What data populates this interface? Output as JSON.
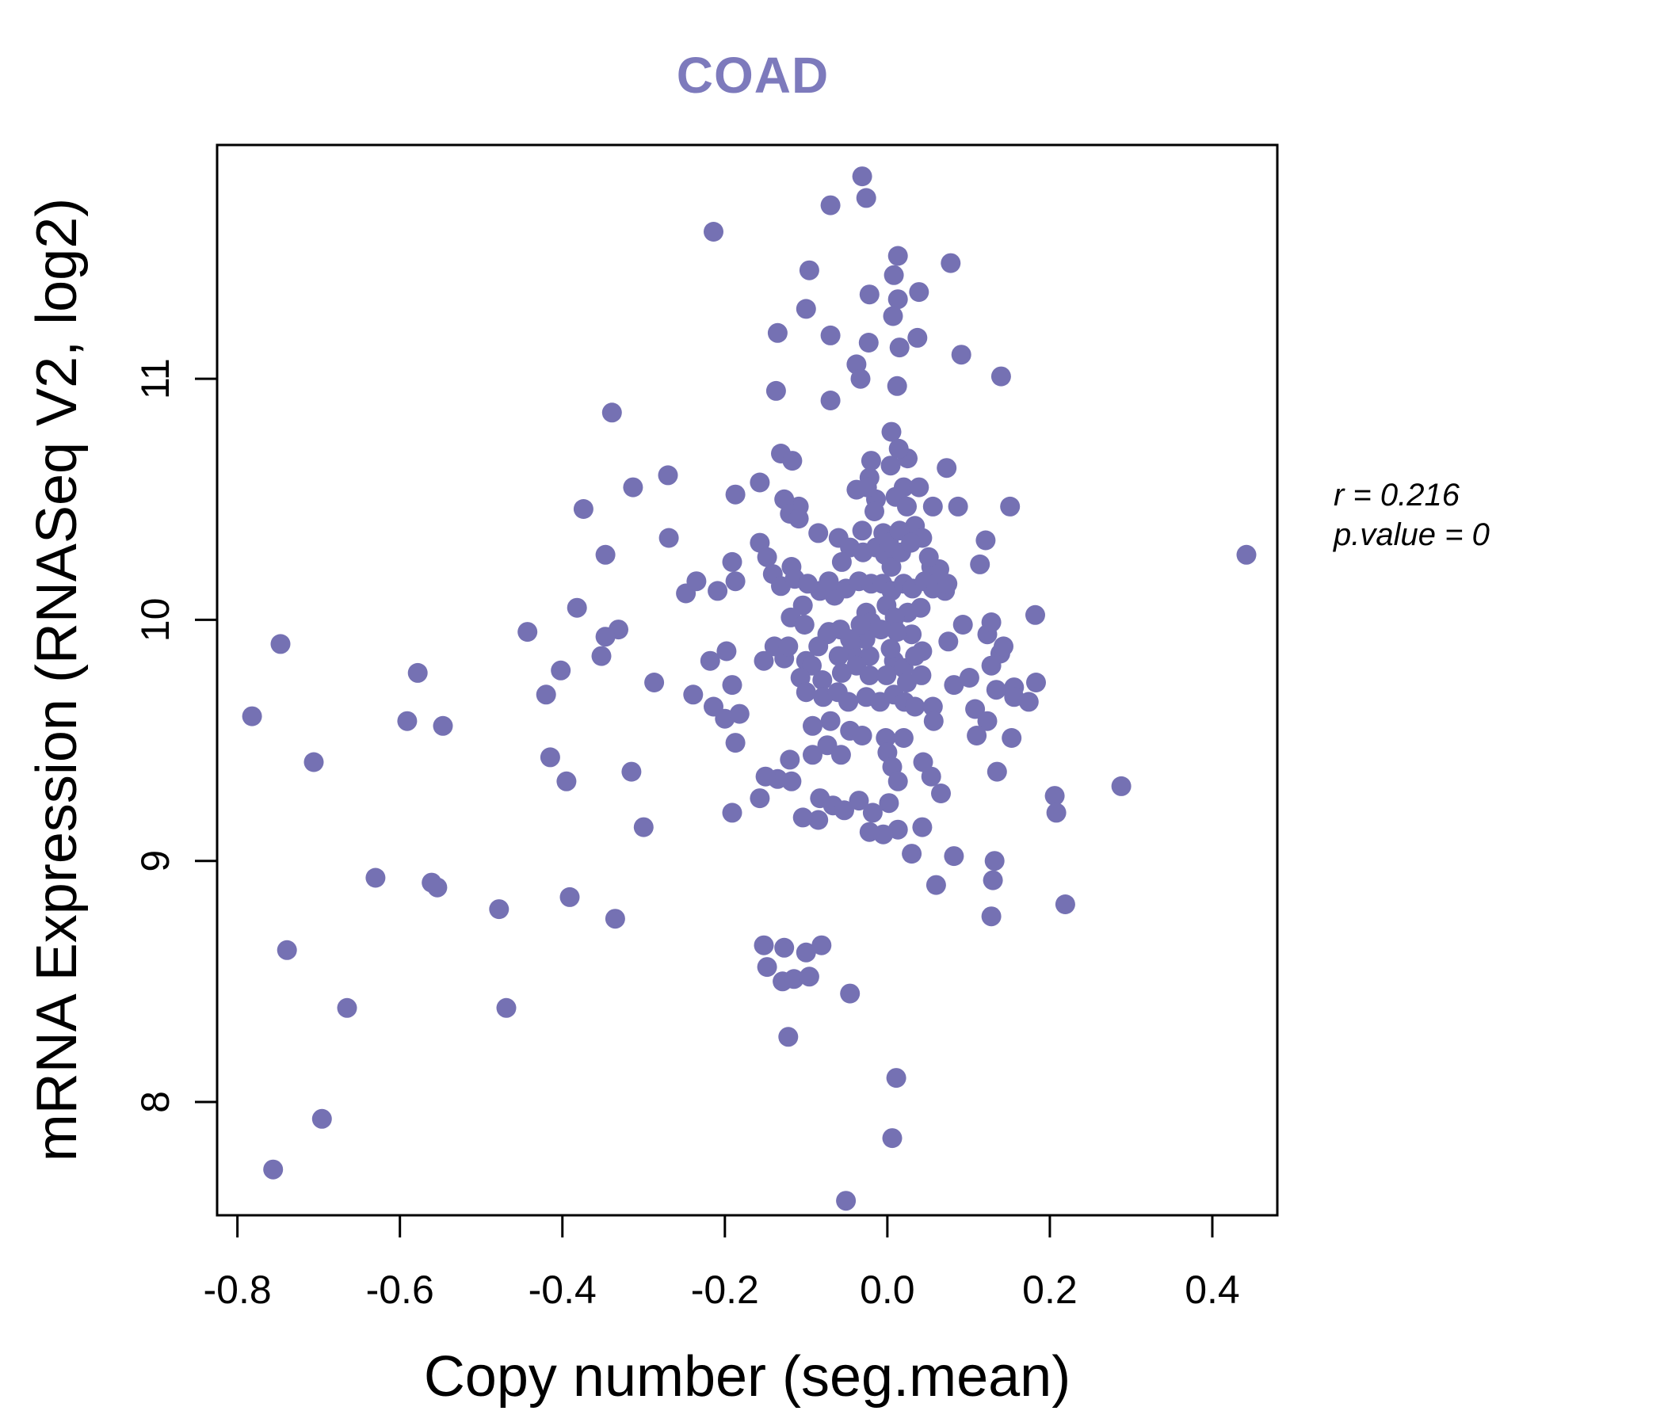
{
  "title": "COAD",
  "title_color": "#7d7abc",
  "annotation": {
    "r_text": "r = 0.216",
    "p_value_text": "p.value = 0"
  },
  "chart_data": {
    "type": "scatter",
    "title": "COAD",
    "xlabel": "Copy number (seg.mean)",
    "ylabel": "mRNA Expression (RNASeq V2, log2)",
    "xlim": [
      -0.825,
      0.48
    ],
    "ylim": [
      7.53,
      11.97
    ],
    "x_ticks": [
      -0.8,
      -0.6,
      -0.4,
      -0.2,
      0.0,
      0.2,
      0.4
    ],
    "x_tick_labels": [
      "-0.8",
      "-0.6",
      "-0.4",
      "-0.2",
      "0.0",
      "0.2",
      "0.4"
    ],
    "y_ticks": [
      8,
      9,
      10,
      11
    ],
    "y_tick_labels": [
      "8",
      "9",
      "10",
      "11"
    ],
    "grid": false,
    "legend_position": "none",
    "point_color": "#7571b3",
    "axis_color": "#000000",
    "correlation_r": 0.216,
    "p_value": 0,
    "points": [
      [
        -0.747,
        9.9
      ],
      [
        -0.578,
        9.78
      ],
      [
        -0.443,
        9.95
      ],
      [
        -0.402,
        9.79
      ],
      [
        -0.782,
        9.6
      ],
      [
        -0.591,
        9.58
      ],
      [
        -0.547,
        9.56
      ],
      [
        -0.42,
        9.69
      ],
      [
        -0.706,
        9.41
      ],
      [
        -0.415,
        9.43
      ],
      [
        -0.395,
        9.33
      ],
      [
        -0.63,
        8.93
      ],
      [
        -0.561,
        8.91
      ],
      [
        -0.554,
        8.89
      ],
      [
        -0.478,
        8.8
      ],
      [
        -0.739,
        8.63
      ],
      [
        -0.665,
        8.39
      ],
      [
        -0.469,
        8.39
      ],
      [
        -0.696,
        7.93
      ],
      [
        -0.756,
        7.72
      ],
      [
        -0.031,
        11.84
      ],
      [
        -0.026,
        11.75
      ],
      [
        -0.07,
        11.72
      ],
      [
        -0.214,
        11.61
      ],
      [
        0.013,
        11.51
      ],
      [
        -0.096,
        11.45
      ],
      [
        0.008,
        11.43
      ],
      [
        -0.022,
        11.35
      ],
      [
        0.013,
        11.33
      ],
      [
        0.039,
        11.36
      ],
      [
        -0.1,
        11.29
      ],
      [
        0.007,
        11.26
      ],
      [
        -0.023,
        11.15
      ],
      [
        0.015,
        11.13
      ],
      [
        0.037,
        11.17
      ],
      [
        -0.135,
        11.19
      ],
      [
        -0.07,
        11.18
      ],
      [
        -0.038,
        11.06
      ],
      [
        -0.033,
        11.0
      ],
      [
        0.012,
        10.97
      ],
      [
        -0.137,
        10.95
      ],
      [
        -0.07,
        10.91
      ],
      [
        -0.27,
        10.6
      ],
      [
        -0.157,
        10.57
      ],
      [
        -0.339,
        10.86
      ],
      [
        -0.313,
        10.55
      ],
      [
        -0.374,
        10.46
      ],
      [
        -0.187,
        10.52
      ],
      [
        -0.109,
        10.47
      ],
      [
        -0.022,
        10.59
      ],
      [
        -0.014,
        10.5
      ],
      [
        0.004,
        10.64
      ],
      [
        0.025,
        10.67
      ],
      [
        0.02,
        10.55
      ],
      [
        0.039,
        10.55
      ],
      [
        -0.031,
        10.37
      ],
      [
        -0.005,
        10.36
      ],
      [
        0.034,
        10.39
      ],
      [
        -0.157,
        10.32
      ],
      [
        -0.131,
        10.69
      ],
      [
        -0.269,
        10.34
      ],
      [
        -0.347,
        10.27
      ],
      [
        -0.382,
        10.05
      ],
      [
        -0.331,
        9.96
      ],
      [
        -0.347,
        9.93
      ],
      [
        -0.248,
        10.11
      ],
      [
        -0.235,
        10.16
      ],
      [
        -0.191,
        10.24
      ],
      [
        -0.187,
        10.16
      ],
      [
        -0.209,
        10.12
      ],
      [
        -0.148,
        10.26
      ],
      [
        -0.141,
        10.19
      ],
      [
        -0.118,
        10.22
      ],
      [
        -0.131,
        10.14
      ],
      [
        -0.104,
        10.06
      ],
      [
        -0.083,
        10.12
      ],
      [
        -0.065,
        10.1
      ],
      [
        -0.051,
        10.13
      ],
      [
        -0.026,
        10.03
      ],
      [
        0.008,
        9.97
      ],
      [
        0.025,
        10.03
      ],
      [
        0.041,
        10.05
      ],
      [
        0.03,
        9.94
      ],
      [
        -0.074,
        9.94
      ],
      [
        -0.044,
        9.87
      ],
      [
        -0.022,
        9.85
      ],
      [
        0.008,
        9.83
      ],
      [
        -0.139,
        9.89
      ],
      [
        -0.127,
        9.84
      ],
      [
        -0.1,
        9.83
      ],
      [
        -0.152,
        9.83
      ],
      [
        -0.198,
        9.87
      ],
      [
        -0.218,
        9.83
      ],
      [
        -0.352,
        9.85
      ],
      [
        -0.287,
        9.74
      ],
      [
        -0.191,
        9.73
      ],
      [
        0.078,
        11.48
      ],
      [
        0.091,
        11.1
      ],
      [
        0.14,
        11.01
      ],
      [
        0.073,
        10.63
      ],
      [
        0.056,
        10.47
      ],
      [
        0.087,
        10.47
      ],
      [
        0.151,
        10.47
      ],
      [
        0.043,
        10.34
      ],
      [
        0.121,
        10.33
      ],
      [
        0.114,
        10.23
      ],
      [
        0.054,
        10.22
      ],
      [
        0.064,
        10.21
      ],
      [
        0.056,
        10.13
      ],
      [
        0.071,
        10.12
      ],
      [
        0.442,
        10.27
      ],
      [
        0.093,
        9.98
      ],
      [
        0.123,
        9.94
      ],
      [
        0.075,
        9.91
      ],
      [
        0.139,
        9.86
      ],
      [
        0.128,
        9.81
      ],
      [
        0.043,
        9.87
      ],
      [
        0.082,
        9.73
      ],
      [
        0.101,
        9.76
      ],
      [
        0.156,
        9.72
      ],
      [
        0.005,
        10.78
      ],
      [
        0.014,
        10.71
      ],
      [
        -0.02,
        10.66
      ],
      [
        -0.117,
        10.66
      ],
      [
        -0.038,
        10.54
      ],
      [
        -0.025,
        10.55
      ],
      [
        -0.016,
        10.45
      ],
      [
        0.01,
        10.51
      ],
      [
        0.024,
        10.47
      ],
      [
        -0.127,
        10.5
      ],
      [
        -0.12,
        10.44
      ],
      [
        -0.109,
        10.42
      ],
      [
        -0.085,
        10.36
      ],
      [
        -0.06,
        10.34
      ],
      [
        -0.046,
        10.3
      ],
      [
        -0.056,
        10.24
      ],
      [
        -0.03,
        10.28
      ],
      [
        -0.014,
        10.3
      ],
      [
        -0.003,
        10.27
      ],
      [
        0.005,
        10.22
      ],
      [
        0.017,
        10.28
      ],
      [
        0.002,
        10.32
      ],
      [
        0.015,
        10.37
      ],
      [
        0.029,
        10.32
      ],
      [
        0.051,
        10.26
      ],
      [
        -0.114,
        10.17
      ],
      [
        -0.098,
        10.15
      ],
      [
        -0.072,
        10.16
      ],
      [
        -0.035,
        10.16
      ],
      [
        -0.02,
        10.15
      ],
      [
        -0.006,
        10.15
      ],
      [
        0.005,
        10.12
      ],
      [
        0.02,
        10.15
      ],
      [
        0.031,
        10.13
      ],
      [
        0.046,
        10.16
      ],
      [
        0.06,
        10.15
      ],
      [
        0.074,
        10.15
      ],
      [
        -0.001,
        10.06
      ],
      [
        0.009,
        10.01
      ],
      [
        0.012,
        9.95
      ],
      [
        0.004,
        9.88
      ],
      [
        -0.008,
        9.96
      ],
      [
        -0.02,
        9.99
      ],
      [
        -0.027,
        9.92
      ],
      [
        -0.033,
        9.98
      ],
      [
        -0.119,
        10.01
      ],
      [
        -0.102,
        9.98
      ],
      [
        -0.122,
        9.89
      ],
      [
        -0.085,
        9.89
      ],
      [
        -0.072,
        9.95
      ],
      [
        -0.058,
        9.96
      ],
      [
        -0.046,
        9.92
      ],
      [
        -0.06,
        9.85
      ],
      [
        -0.093,
        9.81
      ],
      [
        -0.107,
        9.76
      ],
      [
        -0.08,
        9.75
      ],
      [
        -0.056,
        9.78
      ],
      [
        -0.038,
        9.81
      ],
      [
        -0.022,
        9.77
      ],
      [
        -0.001,
        9.77
      ],
      [
        0.02,
        9.8
      ],
      [
        0.034,
        9.85
      ],
      [
        0.024,
        9.74
      ],
      [
        0.042,
        9.77
      ],
      [
        0.128,
        9.99
      ],
      [
        0.143,
        9.89
      ],
      [
        0.134,
        9.71
      ],
      [
        0.183,
        9.74
      ],
      [
        0.182,
        10.02
      ],
      [
        -0.239,
        9.69
      ],
      [
        -0.214,
        9.64
      ],
      [
        -0.2,
        9.59
      ],
      [
        -0.182,
        9.61
      ],
      [
        -0.1,
        9.7
      ],
      [
        -0.079,
        9.68
      ],
      [
        -0.061,
        9.7
      ],
      [
        -0.048,
        9.66
      ],
      [
        -0.026,
        9.68
      ],
      [
        -0.009,
        9.66
      ],
      [
        0.008,
        9.69
      ],
      [
        0.021,
        9.66
      ],
      [
        0.034,
        9.64
      ],
      [
        -0.07,
        9.58
      ],
      [
        -0.046,
        9.54
      ],
      [
        -0.031,
        9.52
      ],
      [
        -0.074,
        9.48
      ],
      [
        -0.057,
        9.44
      ],
      [
        -0.187,
        9.49
      ],
      [
        -0.315,
        9.37
      ],
      [
        -0.092,
        9.44
      ],
      [
        -0.118,
        9.33
      ],
      [
        -0.135,
        9.34
      ],
      [
        -0.15,
        9.35
      ],
      [
        -0.083,
        9.26
      ],
      [
        -0.067,
        9.23
      ],
      [
        -0.053,
        9.21
      ],
      [
        -0.035,
        9.25
      ],
      [
        -0.018,
        9.2
      ],
      [
        0.002,
        9.24
      ],
      [
        0.013,
        9.13
      ],
      [
        -0.005,
        9.11
      ],
      [
        -0.022,
        9.12
      ],
      [
        -0.085,
        9.17
      ],
      [
        -0.104,
        9.18
      ],
      [
        -0.191,
        9.2
      ],
      [
        -0.157,
        9.26
      ],
      [
        -0.3,
        9.14
      ],
      [
        -0.335,
        8.76
      ],
      [
        -0.391,
        8.85
      ],
      [
        -0.152,
        8.65
      ],
      [
        -0.148,
        8.56
      ],
      [
        -0.129,
        8.5
      ],
      [
        -0.115,
        8.51
      ],
      [
        -0.096,
        8.52
      ],
      [
        -0.127,
        8.64
      ],
      [
        -0.1,
        8.62
      ],
      [
        -0.081,
        8.65
      ],
      [
        -0.046,
        8.45
      ],
      [
        -0.122,
        8.27
      ],
      [
        0.011,
        8.1
      ],
      [
        0.006,
        7.85
      ],
      [
        -0.051,
        7.59
      ],
      [
        0.03,
        9.03
      ],
      [
        0.056,
        9.64
      ],
      [
        0.108,
        9.63
      ],
      [
        0.123,
        9.58
      ],
      [
        0.156,
        9.68
      ],
      [
        0.174,
        9.66
      ],
      [
        0.11,
        9.52
      ],
      [
        0.153,
        9.51
      ],
      [
        0.054,
        9.35
      ],
      [
        0.066,
        9.28
      ],
      [
        0.135,
        9.37
      ],
      [
        0.288,
        9.31
      ],
      [
        0.206,
        9.27
      ],
      [
        0.208,
        9.2
      ],
      [
        0.043,
        9.14
      ],
      [
        0.082,
        9.02
      ],
      [
        0.132,
        9.0
      ],
      [
        0.06,
        8.9
      ],
      [
        0.13,
        8.92
      ],
      [
        0.128,
        8.77
      ],
      [
        0.219,
        8.82
      ],
      [
        -0.092,
        9.56
      ],
      [
        -0.002,
        9.51
      ],
      [
        0.02,
        9.51
      ],
      [
        0.057,
        9.58
      ],
      [
        -0.12,
        9.42
      ],
      [
        0.0,
        9.45
      ],
      [
        0.006,
        9.39
      ],
      [
        0.013,
        9.33
      ],
      [
        0.044,
        9.41
      ]
    ]
  }
}
